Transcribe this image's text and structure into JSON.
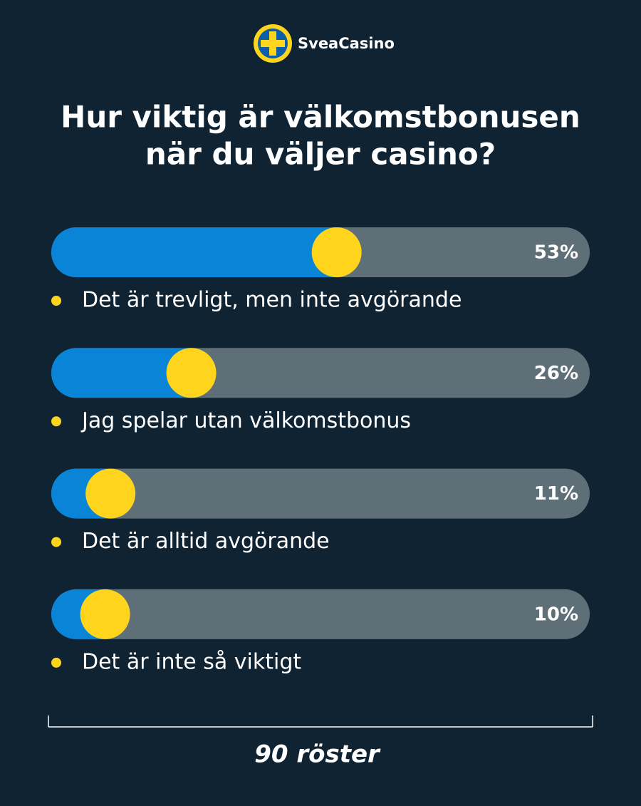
{
  "brand": "SveaCasino",
  "chart_data": {
    "type": "bar",
    "title": [
      "Hur viktig är välkomstbonusen",
      "när du väljer casino?"
    ],
    "categories": [
      "Det är trevligt, men inte avgörande",
      "Jag spelar utan välkomstbonus",
      "Det är alltid avgörande",
      "Det är inte så viktigt"
    ],
    "values": [
      53,
      26,
      11,
      10
    ],
    "value_labels": [
      "53%",
      "26%",
      "11%",
      "10%"
    ],
    "color": "#0a84d6",
    "xlim": [
      0,
      100
    ],
    "total_label": "90 röster"
  }
}
